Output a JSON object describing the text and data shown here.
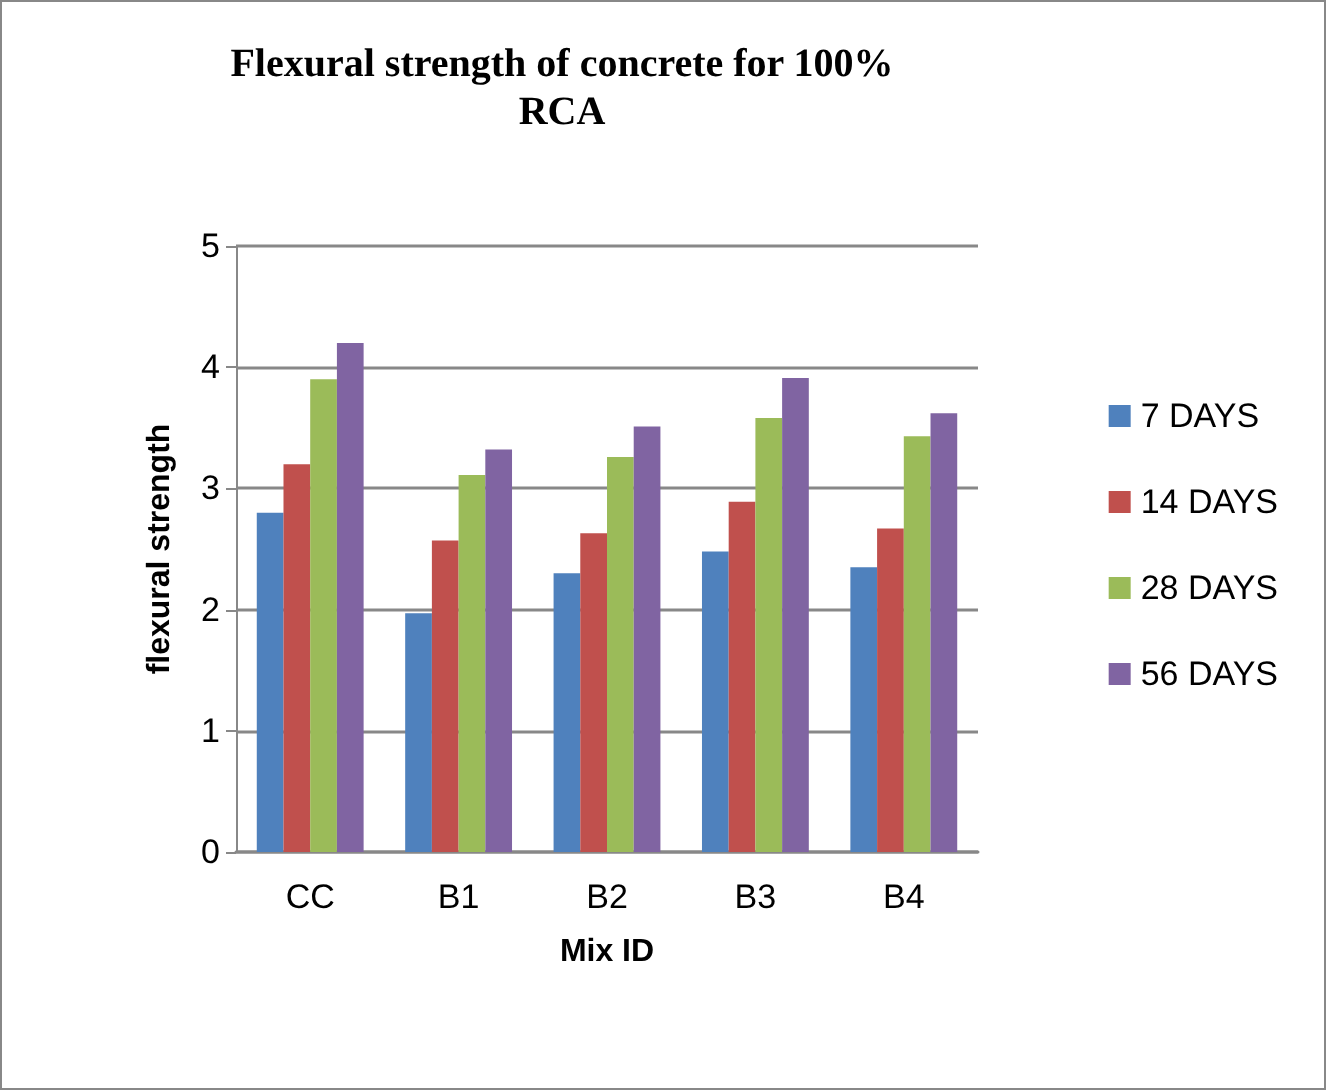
{
  "chart_data": {
    "type": "bar",
    "title": "Flexural strength of concrete for 100%\nRCA",
    "xlabel": "Mix ID",
    "ylabel": "flexural strength",
    "categories": [
      "CC",
      "B1",
      "B2",
      "B3",
      "B4"
    ],
    "series": [
      {
        "name": "7 DAYS",
        "color": "#4f81bd",
        "values": [
          2.8,
          1.97,
          2.3,
          2.48,
          2.35
        ]
      },
      {
        "name": "14 DAYS",
        "color": "#c0504d",
        "values": [
          3.2,
          2.57,
          2.63,
          2.89,
          2.67
        ]
      },
      {
        "name": "28 DAYS",
        "color": "#9bbb59",
        "values": [
          3.9,
          3.11,
          3.26,
          3.58,
          3.43
        ]
      },
      {
        "name": "56 DAYS",
        "color": "#8064a2",
        "values": [
          4.2,
          3.32,
          3.51,
          3.91,
          3.62
        ]
      }
    ],
    "ylim": [
      0,
      5
    ],
    "yticks": [
      0,
      1,
      2,
      3,
      4,
      5
    ],
    "grid": "y",
    "legend": "right"
  }
}
